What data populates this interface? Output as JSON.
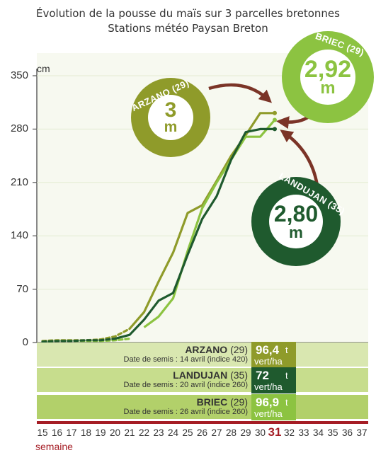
{
  "title_line1": "Évolution de la pousse du maïs sur 3 parcelles bretonnes",
  "title_line2": "Stations météo Paysan Breton",
  "colors": {
    "arzano": "#8f9b2a",
    "briec": "#8cc341",
    "landujan": "#1f5a2e",
    "arrow": "#7b3427",
    "highlight": "#a51d25",
    "band_light": "#d9e7b0",
    "band_mid": "#c7dd8d",
    "band_dark": "#b2d06a"
  },
  "chart_data": {
    "type": "line",
    "ylabel": "cm",
    "xlabel": "semaine",
    "yticks": [
      "0",
      "70",
      "140",
      "210",
      "280",
      "350"
    ],
    "ylim": [
      0,
      350
    ],
    "xlim": [
      15,
      37
    ],
    "xticks": [
      "15",
      "16",
      "17",
      "18",
      "19",
      "20",
      "21",
      "22",
      "23",
      "24",
      "25",
      "26",
      "27",
      "28",
      "29",
      "30",
      "31",
      "32",
      "33",
      "34",
      "35",
      "36",
      "37"
    ],
    "highlight_week": "31",
    "series": [
      {
        "name": "ARZANO (29)",
        "color_key": "arzano",
        "dashed_points": [
          [
            15,
            2
          ],
          [
            16,
            3
          ],
          [
            17,
            3
          ],
          [
            18,
            3
          ],
          [
            19,
            4
          ],
          [
            20,
            8
          ],
          [
            21,
            18
          ]
        ],
        "solid_points": [
          [
            21,
            18
          ],
          [
            22,
            40
          ],
          [
            23,
            80
          ],
          [
            24,
            118
          ],
          [
            25,
            170
          ],
          [
            26,
            180
          ],
          [
            27,
            212
          ],
          [
            28,
            245
          ],
          [
            29,
            272
          ],
          [
            30,
            301
          ],
          [
            31,
            301
          ]
        ]
      },
      {
        "name": "BRIEC (29)",
        "color_key": "briec",
        "dashed_points": [
          [
            15,
            1
          ],
          [
            16,
            2
          ],
          [
            17,
            2
          ],
          [
            18,
            2
          ],
          [
            19,
            2
          ],
          [
            20,
            3
          ],
          [
            21,
            5
          ]
        ],
        "solid_points": [
          [
            22,
            20
          ],
          [
            23,
            34
          ],
          [
            24,
            58
          ],
          [
            25,
            120
          ],
          [
            26,
            176
          ],
          [
            27,
            210
          ],
          [
            28,
            240
          ],
          [
            29,
            270
          ],
          [
            30,
            270
          ],
          [
            31,
            292
          ]
        ]
      },
      {
        "name": "LANDUJAN (35)",
        "color_key": "landujan",
        "dashed_points": [
          [
            15,
            1
          ],
          [
            16,
            2
          ],
          [
            17,
            2
          ],
          [
            18,
            3
          ],
          [
            19,
            3
          ],
          [
            20,
            5
          ]
        ],
        "solid_points": [
          [
            20,
            5
          ],
          [
            21,
            10
          ],
          [
            22,
            30
          ],
          [
            23,
            55
          ],
          [
            24,
            65
          ],
          [
            25,
            115
          ],
          [
            26,
            162
          ],
          [
            27,
            192
          ],
          [
            28,
            240
          ],
          [
            29,
            276
          ],
          [
            30,
            280
          ],
          [
            31,
            280
          ]
        ]
      }
    ],
    "annotations": [
      {
        "label": "ARZANO (29)",
        "value": "3",
        "unit": "m",
        "color_key": "arzano"
      },
      {
        "label": "BRIEC (29)",
        "value": "2,92",
        "unit": "m",
        "color_key": "briec"
      },
      {
        "label": "LANDUJAN (35)",
        "value": "2,80",
        "unit": "m",
        "color_key": "landujan"
      }
    ]
  },
  "rows": [
    {
      "name": "ARZANO",
      "dept": "(29)",
      "sub": "Date de semis : 14 avril (indice 420)",
      "yield_value": "96,4",
      "yield_unit_t": "t",
      "yield_unit": "vert/ha",
      "color_key": "arzano",
      "band_key": "band_light"
    },
    {
      "name": "LANDUJAN",
      "dept": "(35)",
      "sub": "Date de semis : 20 avril (indice 260)",
      "yield_value": "72",
      "yield_unit_t": "t",
      "yield_unit": "vert/ha",
      "color_key": "landujan",
      "band_key": "band_mid"
    },
    {
      "name": "BRIEC",
      "dept": "(29)",
      "sub": "Date de semis : 26 avril (indice 260)",
      "yield_value": "96,9",
      "yield_unit_t": "t",
      "yield_unit": "vert/ha",
      "color_key": "briec",
      "band_key": "band_dark"
    }
  ]
}
